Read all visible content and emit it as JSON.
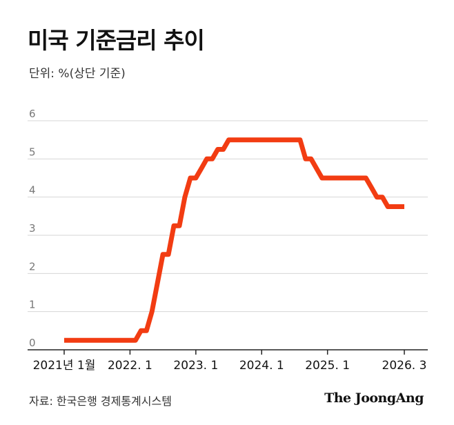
{
  "title": "미국 기준금리 추이",
  "unit": "단위: %(상단 기준)",
  "source": "자료: 한국은행 경제통계시스템",
  "logo": "The JoongAng",
  "colors": {
    "line": "#f23c12",
    "grid": "#d6d6d6",
    "axis": "#222222",
    "tick_text": "#777777"
  },
  "chart_data": {
    "type": "line",
    "ylim": [
      0,
      6
    ],
    "y_ticks": [
      0,
      1,
      2,
      3,
      4,
      5,
      6
    ],
    "x_range": [
      "2021-01",
      "2026-03"
    ],
    "x_ticks": [
      {
        "x": "2021-01",
        "label": "2021년 1월"
      },
      {
        "x": "2022-01",
        "label": "2022. 1"
      },
      {
        "x": "2023-01",
        "label": "2023. 1"
      },
      {
        "x": "2024-01",
        "label": "2024. 1"
      },
      {
        "x": "2025-01",
        "label": "2025. 1"
      },
      {
        "x": "2026-03",
        "label": "2026. 3"
      }
    ],
    "grid": true,
    "series": [
      {
        "values": [
          [
            "2021-01",
            0.25
          ],
          [
            "2022-02",
            0.25
          ],
          [
            "2022-03",
            0.5
          ],
          [
            "2022-04",
            0.5
          ],
          [
            "2022-05",
            1.0
          ],
          [
            "2022-06",
            1.75
          ],
          [
            "2022-07",
            2.5
          ],
          [
            "2022-08",
            2.5
          ],
          [
            "2022-09",
            3.25
          ],
          [
            "2022-10",
            3.25
          ],
          [
            "2022-11",
            4.0
          ],
          [
            "2022-12",
            4.5
          ],
          [
            "2023-01",
            4.5
          ],
          [
            "2023-02",
            4.75
          ],
          [
            "2023-03",
            5.0
          ],
          [
            "2023-04",
            5.0
          ],
          [
            "2023-05",
            5.25
          ],
          [
            "2023-06",
            5.25
          ],
          [
            "2023-07",
            5.5
          ],
          [
            "2024-08",
            5.5
          ],
          [
            "2024-09",
            5.0
          ],
          [
            "2024-10",
            5.0
          ],
          [
            "2024-11",
            4.75
          ],
          [
            "2024-12",
            4.5
          ],
          [
            "2025-08",
            4.5
          ],
          [
            "2025-09",
            4.25
          ],
          [
            "2025-10",
            4.0
          ],
          [
            "2025-11",
            4.0
          ],
          [
            "2025-12",
            3.75
          ],
          [
            "2026-03",
            3.75
          ]
        ]
      }
    ]
  }
}
